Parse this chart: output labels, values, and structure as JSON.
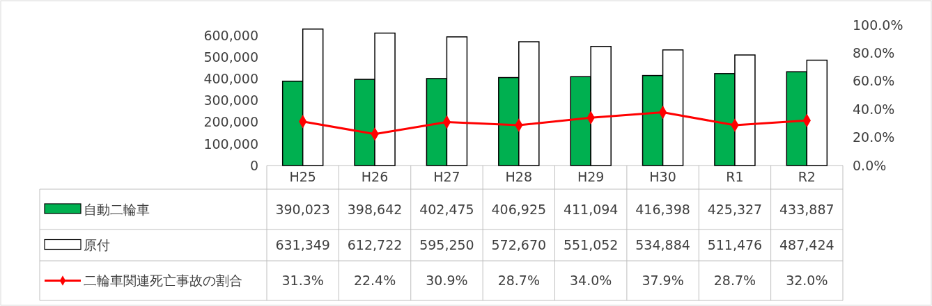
{
  "chart_data": {
    "type": "bar",
    "categories": [
      "H25",
      "H26",
      "H27",
      "H28",
      "H29",
      "H30",
      "R1",
      "R2"
    ],
    "series": [
      {
        "name": "自動二輪車",
        "color": "#00b050",
        "values": [
          390023,
          398642,
          402475,
          406925,
          411094,
          416398,
          425327,
          433887
        ],
        "value_labels": [
          "390,023",
          "398,642",
          "402,475",
          "406,925",
          "411,094",
          "416,398",
          "425,327",
          "433,887"
        ]
      },
      {
        "name": "原付",
        "color": "#ffffff",
        "values": [
          631349,
          612722,
          595250,
          572670,
          551052,
          534884,
          511476,
          487424
        ],
        "value_labels": [
          "631,349",
          "612,722",
          "595,250",
          "572,670",
          "551,052",
          "534,884",
          "511,476",
          "487,424"
        ]
      },
      {
        "name": "二輪車関連死亡事故の割合",
        "type": "line",
        "axis": "y2",
        "color": "#ff0000",
        "marker": "diamond",
        "values": [
          31.3,
          22.4,
          30.9,
          28.7,
          34.0,
          37.9,
          28.7,
          32.0
        ],
        "value_labels": [
          "31.3%",
          "22.4%",
          "30.9%",
          "28.7%",
          "34.0%",
          "37.9%",
          "28.7%",
          "32.0%"
        ]
      }
    ],
    "ylim": [
      0,
      650000
    ],
    "yticks": [
      {
        "value": 0,
        "label": "0"
      },
      {
        "value": 100000,
        "label": "100,000"
      },
      {
        "value": 200000,
        "label": "200,000"
      },
      {
        "value": 300000,
        "label": "300,000"
      },
      {
        "value": 400000,
        "label": "400,000"
      },
      {
        "value": 500000,
        "label": "500,000"
      },
      {
        "value": 600000,
        "label": "600,000"
      }
    ],
    "y2lim": [
      0,
      100
    ],
    "y2ticks": [
      {
        "value": 0,
        "label": "0.0%"
      },
      {
        "value": 20,
        "label": "20.0%"
      },
      {
        "value": 40,
        "label": "40.0%"
      },
      {
        "value": 60,
        "label": "60.0%"
      },
      {
        "value": 80,
        "label": "80.0%"
      },
      {
        "value": 100,
        "label": "100.0%"
      }
    ],
    "legend": "bottom"
  }
}
